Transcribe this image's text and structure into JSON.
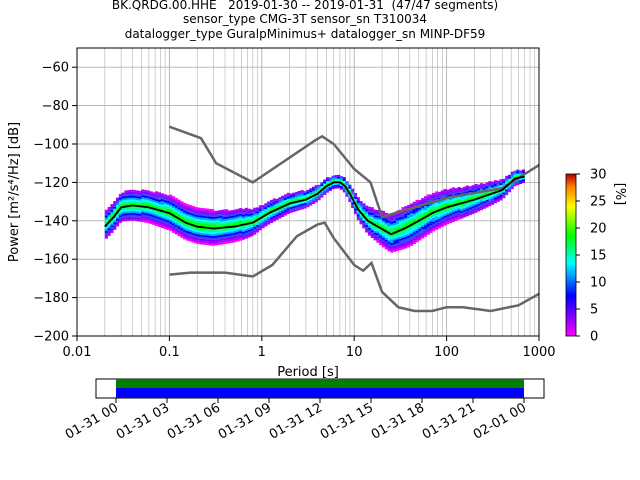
{
  "titles": [
    "BK.QRDG.00.HHE   2019-01-30 -- 2019-01-31  (47/47 segments)",
    "sensor_type CMG-3T sensor_sn T310034",
    "datalogger_type GuralpMinimus+ datalogger_sn MINP-DF59"
  ],
  "chart_data": {
    "type": "heatmap",
    "xlabel": "Period [s]",
    "ylabel": "Power [m²/s⁴/Hz] [dB]",
    "xscale": "log",
    "xlim": [
      0.01,
      1000
    ],
    "ylim": [
      -200,
      -50
    ],
    "xticks": [
      {
        "v": 0.01,
        "label": "0.01"
      },
      {
        "v": 0.1,
        "label": "0.1"
      },
      {
        "v": 1,
        "label": "1"
      },
      {
        "v": 10,
        "label": "10"
      },
      {
        "v": 100,
        "label": "100"
      },
      {
        "v": 1000,
        "label": "1000"
      }
    ],
    "yticks": [
      -60,
      -80,
      -100,
      -120,
      -140,
      -160,
      -180,
      -200
    ],
    "grid": true,
    "colorbar": {
      "label": "[%]",
      "min": 0,
      "max": 30,
      "ticks": [
        0,
        5,
        10,
        15,
        20,
        25,
        30
      ]
    },
    "noise_models": {
      "color": "#666666",
      "high": [
        [
          0.1,
          -91
        ],
        [
          0.22,
          -97
        ],
        [
          0.32,
          -110
        ],
        [
          0.8,
          -120
        ],
        [
          3.8,
          -98
        ],
        [
          4.5,
          -96
        ],
        [
          6,
          -100
        ],
        [
          10,
          -113
        ],
        [
          15,
          -120
        ],
        [
          20,
          -138
        ],
        [
          100,
          -128
        ],
        [
          400,
          -123
        ],
        [
          1000,
          -111
        ]
      ],
      "low": [
        [
          0.1,
          -168
        ],
        [
          0.17,
          -167
        ],
        [
          0.4,
          -167
        ],
        [
          0.8,
          -169
        ],
        [
          1.3,
          -163
        ],
        [
          2.4,
          -148
        ],
        [
          4,
          -142
        ],
        [
          4.8,
          -141
        ],
        [
          6,
          -149
        ],
        [
          10,
          -163
        ],
        [
          12.5,
          -166
        ],
        [
          15.4,
          -162
        ],
        [
          20,
          -177
        ],
        [
          30,
          -185
        ],
        [
          45,
          -187
        ],
        [
          70,
          -187
        ],
        [
          100,
          -185
        ],
        [
          150,
          -185
        ],
        [
          300,
          -187
        ],
        [
          600,
          -184
        ],
        [
          1000,
          -178
        ]
      ]
    },
    "mean_curve": {
      "color": "#000000",
      "points": [
        [
          0.02,
          -143
        ],
        [
          0.025,
          -138
        ],
        [
          0.03,
          -133
        ],
        [
          0.04,
          -132
        ],
        [
          0.06,
          -133
        ],
        [
          0.1,
          -136
        ],
        [
          0.15,
          -141
        ],
        [
          0.2,
          -143
        ],
        [
          0.3,
          -144
        ],
        [
          0.5,
          -143
        ],
        [
          0.8,
          -141
        ],
        [
          1.2,
          -136
        ],
        [
          2,
          -131
        ],
        [
          3,
          -129
        ],
        [
          4,
          -126
        ],
        [
          5,
          -122
        ],
        [
          6,
          -120
        ],
        [
          7,
          -120
        ],
        [
          8,
          -122
        ],
        [
          9,
          -126
        ],
        [
          11,
          -134
        ],
        [
          14,
          -140
        ],
        [
          18,
          -143
        ],
        [
          25,
          -147
        ],
        [
          35,
          -144
        ],
        [
          50,
          -140
        ],
        [
          70,
          -136
        ],
        [
          100,
          -133
        ],
        [
          200,
          -129
        ],
        [
          400,
          -124
        ],
        [
          550,
          -118
        ],
        [
          700,
          -117
        ]
      ]
    },
    "histogram_spread": [
      [
        0.02,
        7
      ],
      [
        0.05,
        8
      ],
      [
        0.1,
        9
      ],
      [
        0.3,
        9
      ],
      [
        0.6,
        8
      ],
      [
        1,
        6
      ],
      [
        2,
        5
      ],
      [
        4,
        4
      ],
      [
        7,
        3
      ],
      [
        10,
        5
      ],
      [
        20,
        9
      ],
      [
        40,
        11
      ],
      [
        100,
        9
      ],
      [
        300,
        6
      ],
      [
        700,
        3
      ]
    ],
    "time_axis": {
      "ticks": [
        "01-31 00",
        "01-31 03",
        "01-31 06",
        "01-31 09",
        "01-31 12",
        "01-31 15",
        "01-31 18",
        "01-31 21",
        "02-01 00"
      ],
      "bar_colors": [
        "#008000",
        "#0000ff"
      ]
    }
  }
}
